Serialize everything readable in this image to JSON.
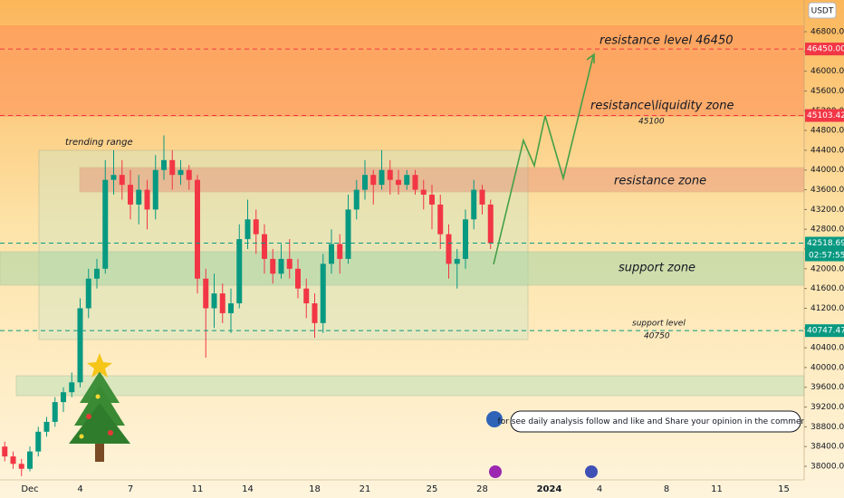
{
  "header": {
    "currency": "USDT"
  },
  "chart_data": {
    "type": "candlestick",
    "categories": [
      null,
      null,
      null,
      "Dec",
      null,
      null,
      null,
      null,
      null,
      "4",
      null,
      null,
      null,
      null,
      null,
      "7",
      null,
      null,
      null,
      null,
      null,
      null,
      null,
      "11",
      null,
      null,
      null,
      null,
      null,
      "14",
      null,
      null,
      null,
      null,
      null,
      null,
      null,
      "18",
      null,
      null,
      null,
      null,
      null,
      "21",
      null,
      null,
      null,
      null,
      null,
      null,
      null,
      "25",
      null,
      null,
      null,
      null,
      null,
      "28",
      null,
      null,
      null,
      null,
      null,
      null,
      null,
      "2024",
      null,
      null,
      null,
      null,
      null,
      "4",
      null,
      null,
      null,
      null,
      null,
      null,
      null,
      "8",
      null,
      null,
      null,
      null,
      null,
      "11",
      null,
      null,
      null,
      null,
      null,
      null,
      null,
      "15",
      null
    ],
    "open": [
      38400,
      38200,
      38050,
      37950,
      38300,
      38700,
      38900,
      39300,
      39500,
      39700,
      41200,
      41800,
      42000,
      43800,
      43900,
      43700,
      43300,
      43600,
      43200,
      44000,
      44200,
      43900,
      44000,
      43800,
      41800,
      41200,
      41500,
      41100,
      41300,
      42600,
      43000,
      42700,
      42200,
      41900,
      42200,
      42000,
      41600,
      41300,
      40900,
      42100,
      42500,
      42200,
      43200,
      43600,
      43900,
      43700,
      44000,
      43800,
      43700,
      43900,
      43600,
      43500,
      43300,
      42700,
      42100,
      42200,
      43000,
      43600,
      43300,
      null,
      null,
      null,
      null,
      null,
      null,
      null,
      null,
      null,
      null,
      null,
      null,
      null,
      null,
      null,
      null,
      null,
      null,
      null,
      null,
      null,
      null,
      null,
      null,
      null,
      null,
      null,
      null,
      null,
      null,
      null,
      null,
      null,
      null,
      null,
      null
    ],
    "high": [
      38500,
      38300,
      38150,
      38400,
      38800,
      39000,
      39400,
      39600,
      39900,
      41400,
      42000,
      42200,
      44200,
      44400,
      44200,
      44000,
      43900,
      43800,
      44300,
      44700,
      44400,
      44200,
      44100,
      43900,
      42000,
      41900,
      41700,
      41600,
      42900,
      43400,
      43200,
      42900,
      42400,
      42500,
      42600,
      42200,
      41800,
      41500,
      42300,
      42800,
      42700,
      43500,
      43800,
      44200,
      44000,
      44400,
      44200,
      44000,
      44000,
      44000,
      43800,
      43700,
      43500,
      42900,
      42400,
      43200,
      43800,
      43700,
      43400,
      null,
      null,
      null,
      null,
      null,
      null,
      null,
      null,
      null,
      null,
      null,
      null,
      null,
      null,
      null,
      null,
      null,
      null,
      null,
      null,
      null,
      null,
      null,
      null,
      null,
      null,
      null,
      null,
      null,
      null,
      null,
      null,
      null,
      null,
      null,
      null
    ],
    "low": [
      38100,
      37950,
      37800,
      37900,
      38200,
      38600,
      38800,
      39100,
      39400,
      39600,
      41000,
      41600,
      41900,
      43500,
      43400,
      43000,
      42900,
      42800,
      43000,
      43800,
      43600,
      43700,
      43600,
      41500,
      40200,
      40800,
      40900,
      40700,
      41200,
      42400,
      42300,
      41900,
      41700,
      41800,
      41800,
      41400,
      41000,
      40600,
      40700,
      41900,
      41900,
      42100,
      43000,
      43400,
      43300,
      43600,
      43500,
      43500,
      43600,
      43500,
      43200,
      42800,
      42400,
      41800,
      41600,
      42000,
      42800,
      43100,
      42400,
      null,
      null,
      null,
      null,
      null,
      null,
      null,
      null,
      null,
      null,
      null,
      null,
      null,
      null,
      null,
      null,
      null,
      null,
      null,
      null,
      null,
      null,
      null,
      null,
      null,
      null,
      null,
      null,
      null,
      null,
      null,
      null,
      null,
      null,
      null,
      null
    ],
    "close": [
      38200,
      38050,
      37950,
      38300,
      38700,
      38900,
      39300,
      39500,
      39700,
      41200,
      41800,
      42000,
      43800,
      43900,
      43700,
      43300,
      43600,
      43200,
      44000,
      44200,
      43900,
      44000,
      43800,
      41800,
      41200,
      41500,
      41100,
      41300,
      42600,
      43000,
      42700,
      42200,
      41900,
      42200,
      42000,
      41600,
      41300,
      40900,
      42100,
      42500,
      42200,
      43200,
      43600,
      43900,
      43700,
      44000,
      43800,
      43700,
      43900,
      43600,
      43500,
      43300,
      42700,
      42100,
      42200,
      43000,
      43600,
      43300,
      42518.69,
      null,
      null,
      null,
      null,
      null,
      null,
      null,
      null,
      null,
      null,
      null,
      null,
      null,
      null,
      null,
      null,
      null,
      null,
      null,
      null,
      null,
      null,
      null,
      null,
      null,
      null,
      null,
      null,
      null,
      null,
      null,
      null,
      null,
      null,
      null,
      null
    ],
    "up_color": "#089981",
    "down_color": "#f23645",
    "ylim": [
      37725,
      47442
    ],
    "yticks": [
      {
        "value": 38000,
        "label": "38000.00"
      },
      {
        "value": 38400,
        "label": "38400.00"
      },
      {
        "value": 38800,
        "label": "38800.00"
      },
      {
        "value": 39200,
        "label": "39200.00"
      },
      {
        "value": 39600,
        "label": "39600.00"
      },
      {
        "value": 40000,
        "label": "40000.00"
      },
      {
        "value": 40400,
        "label": "40400.00"
      },
      {
        "value": 40800,
        "label": "40800.00"
      },
      {
        "value": 41200,
        "label": "41200.00"
      },
      {
        "value": 41600,
        "label": "41600.00"
      },
      {
        "value": 42000,
        "label": "42000.00"
      },
      {
        "value": 42400,
        "label": "42400.00"
      },
      {
        "value": 42800,
        "label": "42800.00"
      },
      {
        "value": 43200,
        "label": "43200.00"
      },
      {
        "value": 43600,
        "label": "43600.00"
      },
      {
        "value": 44000,
        "label": "44000.00"
      },
      {
        "value": 44400,
        "label": "44400.00"
      },
      {
        "value": 44800,
        "label": "44800.00"
      },
      {
        "value": 45200,
        "label": "45200.00"
      },
      {
        "value": 45600,
        "label": "45600.00"
      },
      {
        "value": 46000,
        "label": "46000.00"
      },
      {
        "value": 46400,
        "label": "46400.00"
      },
      {
        "value": 46800,
        "label": "46800.00"
      }
    ],
    "price_labels": [
      {
        "value": 46450,
        "label": "46450.00",
        "color": "#f23645"
      },
      {
        "value": 45103.42,
        "label": "45103.42",
        "color": "#f23645"
      },
      {
        "value": 42518.69,
        "label": "42518.69",
        "color": "#089981"
      },
      {
        "value": 40747.47,
        "label": "40747.47",
        "color": "#089981"
      }
    ],
    "countdown": "02:57:55",
    "annotations": {
      "trending_range": "trending range",
      "resistance_level": "resistance level 46450",
      "liquidity_zone": "resistance\\liquidity zone",
      "liquidity_level": "45100",
      "resistance_zone": "resistance zone",
      "support_zone": "support zone",
      "support_level": "support level",
      "support_level_value": "40750",
      "comment": "for see daily analysis follow and like and Share your opinion in the comments"
    }
  }
}
